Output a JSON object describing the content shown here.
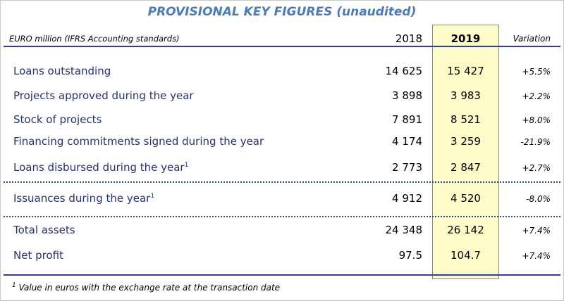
{
  "header": {
    "title": "PROVISIONAL KEY FIGURES (unaudited)",
    "unit": "EURO million (IFRS Accounting standards)",
    "col_2018": "2018",
    "col_2019": "2019",
    "col_variation": "Variation"
  },
  "table": {
    "rows": [
      {
        "label": "Loans outstanding",
        "v2018": "14 625",
        "v2019": "15 427",
        "variation": "+5.5%"
      },
      {
        "label": "Projects approved during the year",
        "v2018": "3 898",
        "v2019": "3 983",
        "variation": "+2.2%"
      },
      {
        "label": "Stock of projects",
        "v2018": "7 891",
        "v2019": "8 521",
        "variation": "+8.0%"
      },
      {
        "label": "Financing commitments signed during the year",
        "v2018": "4 174",
        "v2019": "3 259",
        "variation": "-21.9%"
      },
      {
        "label": "Loans disbursed during the year",
        "note": "1",
        "v2018": "2 773",
        "v2019": "2 847",
        "variation": "+2.7%"
      },
      {
        "label": "Issuances during the year",
        "note": "1",
        "v2018": "4 912",
        "v2019": "4 520",
        "variation": "-8.0%"
      },
      {
        "label": "Total assets",
        "v2018": "24 348",
        "v2019": "26 142",
        "variation": "+7.4%"
      },
      {
        "label": "Net profit",
        "v2018": "97.5",
        "v2019": "104.7",
        "variation": "+7.4%"
      }
    ]
  },
  "footnote": {
    "marker": "1",
    "text": "Value in euros with the exchange rate at the transaction date"
  }
}
